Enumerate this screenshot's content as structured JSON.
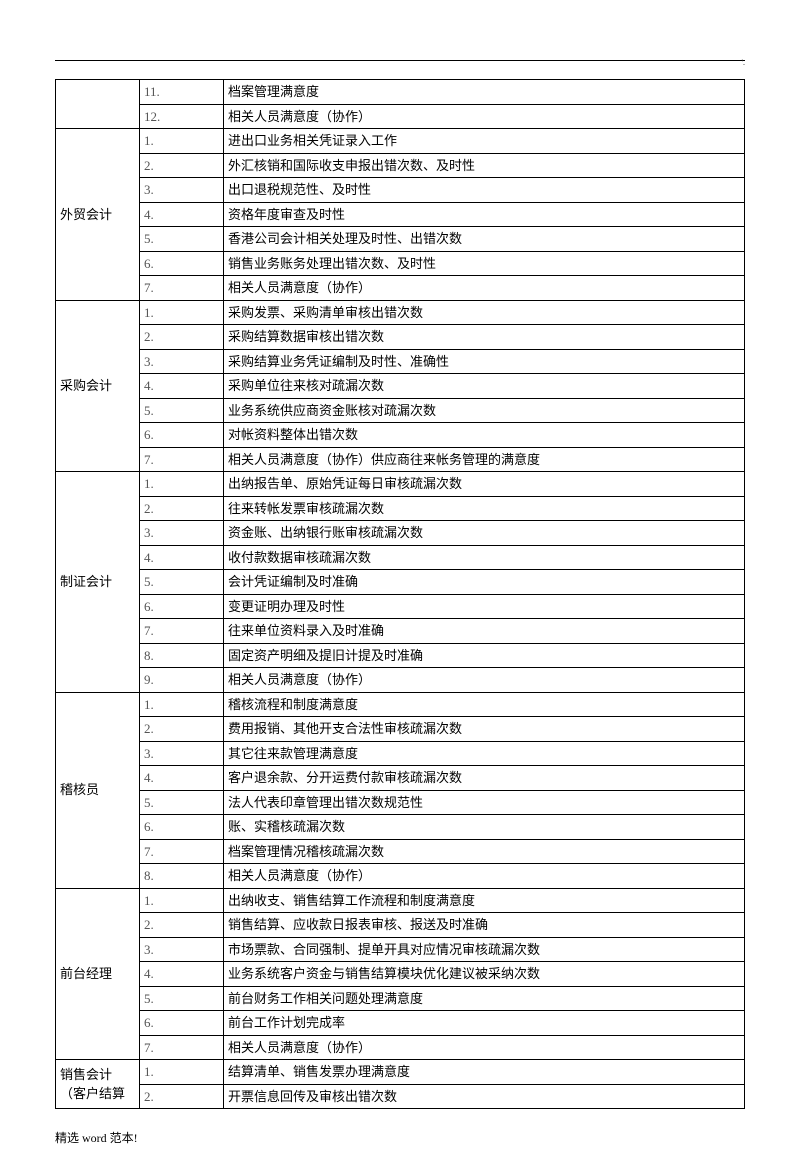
{
  "page_marker": "'.",
  "footer": "精选 word 范本!",
  "colors": {
    "border": "#000000",
    "text": "#000000",
    "num_text": "#555555",
    "background": "#ffffff"
  },
  "top_rows": [
    {
      "num": "11.",
      "desc": "档案管理满意度"
    },
    {
      "num": "12.",
      "desc": "相关人员满意度（协作）"
    }
  ],
  "sections": [
    {
      "label": "外贸会计",
      "items": [
        {
          "num": "1.",
          "desc": "进出口业务相关凭证录入工作"
        },
        {
          "num": "2.",
          "desc": "外汇核销和国际收支申报出错次数、及时性"
        },
        {
          "num": "3.",
          "desc": "出口退税规范性、及时性"
        },
        {
          "num": "4.",
          "desc": "资格年度审查及时性"
        },
        {
          "num": "5.",
          "desc": "香港公司会计相关处理及时性、出错次数"
        },
        {
          "num": "6.",
          "desc": "销售业务账务处理出错次数、及时性"
        },
        {
          "num": "7.",
          "desc": "相关人员满意度（协作）"
        }
      ]
    },
    {
      "label": "采购会计",
      "items": [
        {
          "num": "1.",
          "desc": "采购发票、采购清单审核出错次数"
        },
        {
          "num": "2.",
          "desc": "采购结算数据审核出错次数"
        },
        {
          "num": "3.",
          "desc": "采购结算业务凭证编制及时性、准确性"
        },
        {
          "num": "4.",
          "desc": "采购单位往来核对疏漏次数"
        },
        {
          "num": "5.",
          "desc": "业务系统供应商资金账核对疏漏次数"
        },
        {
          "num": "6.",
          "desc": "对帐资料整体出错次数"
        },
        {
          "num": "7.",
          "desc": "相关人员满意度（协作）供应商往来帐务管理的满意度"
        }
      ]
    },
    {
      "label": "制证会计",
      "items": [
        {
          "num": "1.",
          "desc": "出纳报告单、原始凭证每日审核疏漏次数"
        },
        {
          "num": "2.",
          "desc": "往来转帐发票审核疏漏次数"
        },
        {
          "num": "3.",
          "desc": "资金账、出纳银行账审核疏漏次数"
        },
        {
          "num": "4.",
          "desc": "收付款数据审核疏漏次数"
        },
        {
          "num": "5.",
          "desc": "会计凭证编制及时准确"
        },
        {
          "num": "6.",
          "desc": "变更证明办理及时性"
        },
        {
          "num": "7.",
          "desc": "往来单位资料录入及时准确"
        },
        {
          "num": "8.",
          "desc": "固定资产明细及提旧计提及时准确"
        },
        {
          "num": "9.",
          "desc": "相关人员满意度（协作）"
        }
      ]
    },
    {
      "label": "稽核员",
      "items": [
        {
          "num": "1.",
          "desc": "稽核流程和制度满意度"
        },
        {
          "num": "2.",
          "desc": "费用报销、其他开支合法性审核疏漏次数"
        },
        {
          "num": "3.",
          "desc": "其它往来款管理满意度"
        },
        {
          "num": "4.",
          "desc": "客户退余款、分开运费付款审核疏漏次数"
        },
        {
          "num": "5.",
          "desc": "法人代表印章管理出错次数规范性"
        },
        {
          "num": "6.",
          "desc": "账、实稽核疏漏次数"
        },
        {
          "num": "7.",
          "desc": "档案管理情况稽核疏漏次数"
        },
        {
          "num": "8.",
          "desc": "相关人员满意度（协作）"
        }
      ]
    },
    {
      "label": "前台经理",
      "items": [
        {
          "num": "1.",
          "desc": "出纳收支、销售结算工作流程和制度满意度"
        },
        {
          "num": "2.",
          "desc": "销售结算、应收款日报表审核、报送及时准确"
        },
        {
          "num": "3.",
          "desc": "市场票款、合同强制、提单开具对应情况审核疏漏次数"
        },
        {
          "num": "4.",
          "desc": "业务系统客户资金与销售结算模块优化建议被采纳次数"
        },
        {
          "num": "5.",
          "desc": "前台财务工作相关问题处理满意度"
        },
        {
          "num": "6.",
          "desc": "前台工作计划完成率"
        },
        {
          "num": "7.",
          "desc": "相关人员满意度（协作）"
        }
      ]
    },
    {
      "label": "销售会计（客户结算",
      "items": [
        {
          "num": "1.",
          "desc": "结算清单、销售发票办理满意度"
        },
        {
          "num": "2.",
          "desc": "开票信息回传及审核出错次数"
        }
      ]
    }
  ]
}
